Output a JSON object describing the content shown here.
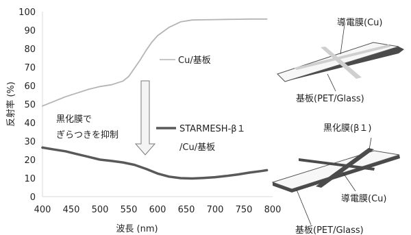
{
  "chart_data": {
    "type": "line",
    "xlabel": "波長 (nm)",
    "ylabel": "反射率 (%)",
    "xlim": [
      400,
      800
    ],
    "ylim": [
      0,
      100
    ],
    "x_ticks": [
      400,
      450,
      500,
      550,
      600,
      650,
      700,
      750,
      800
    ],
    "y_ticks": [
      0,
      10,
      20,
      30,
      40,
      50,
      60,
      70,
      80,
      90,
      100
    ],
    "grid": false,
    "series": [
      {
        "name": "Cu/基板",
        "color": "#b4b4b4",
        "x": [
          400,
          420,
          440,
          460,
          480,
          500,
          520,
          540,
          550,
          560,
          570,
          580,
          590,
          600,
          620,
          640,
          660,
          680,
          700,
          720,
          740,
          760,
          780,
          790
        ],
        "y": [
          49,
          51.5,
          54,
          56,
          58,
          59.5,
          60.5,
          62.5,
          65,
          69.5,
          74,
          79,
          83.5,
          87,
          91.5,
          94.5,
          95.5,
          95.6,
          95.7,
          95.8,
          95.9,
          96,
          96,
          96
        ]
      },
      {
        "name": "STARMESH-β１ /Cu/基板",
        "color": "#595959",
        "x": [
          400,
          420,
          440,
          460,
          480,
          500,
          520,
          540,
          560,
          580,
          600,
          620,
          640,
          660,
          680,
          700,
          720,
          740,
          760,
          780,
          790
        ],
        "y": [
          26.5,
          25.5,
          24.5,
          23,
          21.5,
          20,
          19.3,
          18.5,
          17.2,
          15,
          12.5,
          10.8,
          10,
          9.8,
          10.1,
          10.5,
          11.2,
          12,
          13,
          13.8,
          14.3
        ]
      }
    ],
    "annotations": {
      "cu_label": "Cu/基板",
      "starmesh_label_line1": "STARMESH-β１",
      "starmesh_label_line2": "/Cu/基板",
      "glare_line1": "黒化膜で",
      "glare_line2": "ぎらつきを抑制"
    }
  },
  "diagram": {
    "top_film_label": "導電膜(Cu)",
    "top_substrate_label": "基板(PET/Glass)",
    "bottom_black_label": "黒化膜(β１)",
    "bottom_film_label": "導電膜(Cu)",
    "bottom_substrate_label": "基板(PET/Glass)"
  }
}
